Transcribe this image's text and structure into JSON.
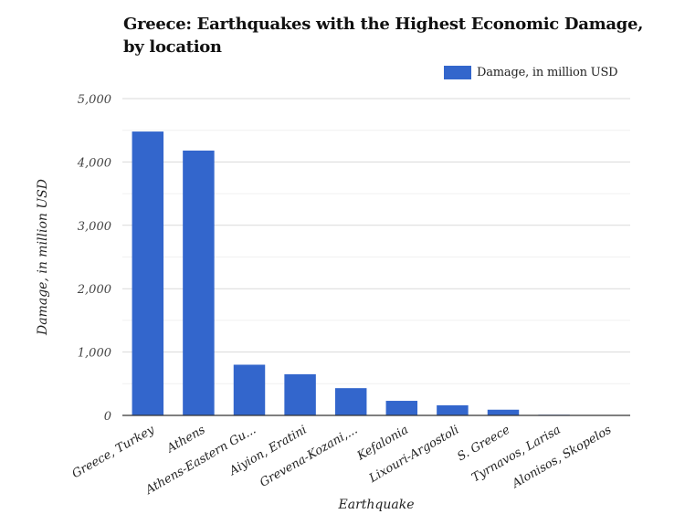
{
  "title": "Greece: Earthquakes with the Highest Economic Damage, by location",
  "legend": {
    "label": "Damage, in million USD",
    "color": "#3366CC"
  },
  "chart_data": {
    "type": "bar",
    "title": "Greece: Earthquakes with the Highest Economic Damage, by location",
    "xlabel": "Earthquake",
    "ylabel": "Damage, in million USD",
    "ylim": [
      0,
      5000
    ],
    "yticks": [
      0,
      1000,
      2000,
      3000,
      4000,
      5000
    ],
    "ytick_labels": [
      "0",
      "1,000",
      "2,000",
      "3,000",
      "4,000",
      "5,000"
    ],
    "minor_gridlines": [
      500,
      1500,
      2500,
      3500,
      4500
    ],
    "grid": true,
    "legend_position": "top-right",
    "categories": [
      "Greece, Turkey",
      "Athens",
      "Athens-Eastern Gu...",
      "Aiyion, Eratini",
      "Grevena-Kozani,...",
      "Kefalonia",
      "Lixouri-Argostoli",
      "S. Greece",
      "Tyrnavos, Larisa",
      "Alonisos, Skopelos"
    ],
    "series": [
      {
        "name": "Damage, in million USD",
        "color": "#3366CC",
        "values": [
          4480,
          4180,
          800,
          650,
          430,
          230,
          160,
          90,
          10,
          5
        ]
      }
    ]
  }
}
